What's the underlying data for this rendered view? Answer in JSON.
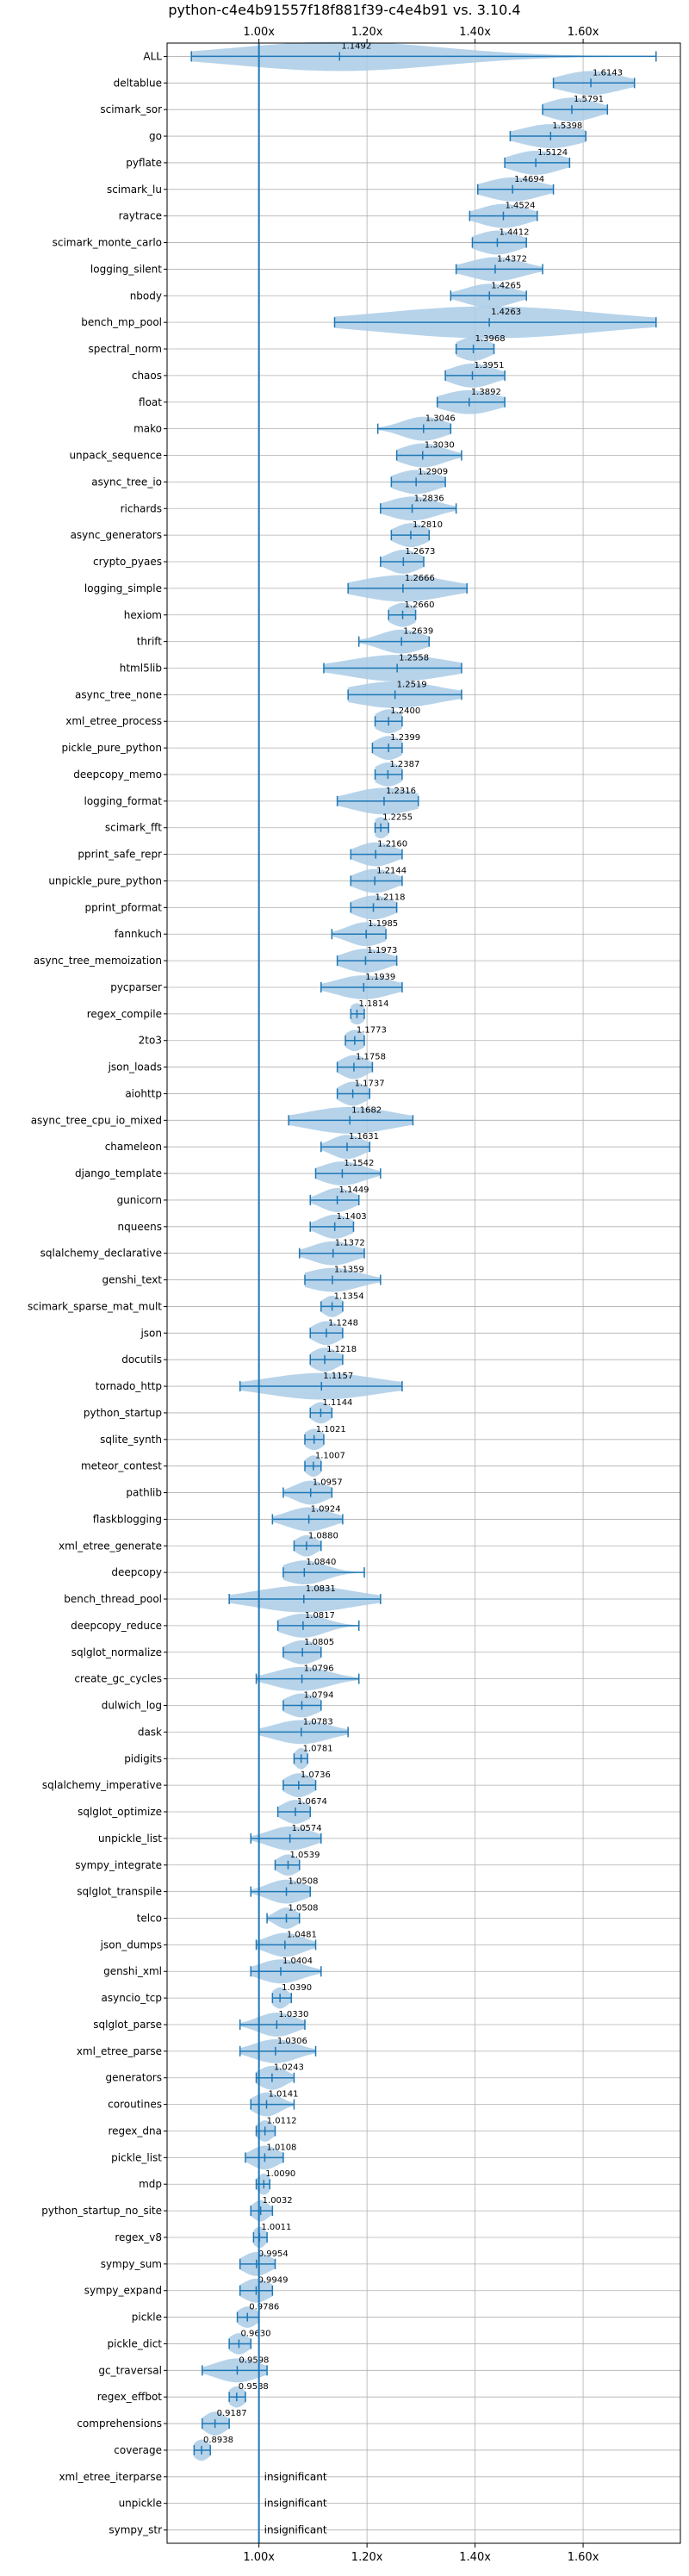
{
  "chart_data": {
    "type": "violin",
    "title": "python-c4e4b91557f18f881f39-c4e4b91 vs. 3.10.4",
    "x_axis": {
      "min": 0.83,
      "max": 1.78,
      "ticks": [
        1.0,
        1.2,
        1.4,
        1.6
      ],
      "tick_labels": [
        "1.00x",
        "1.20x",
        "1.40x",
        "1.60x"
      ],
      "reference_line": 1.0,
      "positions": [
        "top",
        "bottom"
      ]
    },
    "colors": {
      "violin": "#a9cbe6",
      "line": "#1f77b4",
      "grid": "#b0b0b0"
    },
    "insignificant_label": "insignificant",
    "benchmarks": [
      {
        "name": "ALL",
        "label": "1.1492",
        "mean": 1.1492,
        "lo": 0.875,
        "hi": 1.735,
        "spread": 0.19,
        "height": 0.55
      },
      {
        "name": "deltablue",
        "label": "1.6143",
        "mean": 1.6143,
        "lo": 1.545,
        "hi": 1.695,
        "spread": 0.055,
        "height": 0.45
      },
      {
        "name": "scimark_sor",
        "label": "1.5791",
        "mean": 1.5791,
        "lo": 1.525,
        "hi": 1.645,
        "spread": 0.045,
        "height": 0.45
      },
      {
        "name": "go",
        "label": "1.5398",
        "mean": 1.5398,
        "lo": 1.465,
        "hi": 1.605,
        "spread": 0.055,
        "height": 0.45
      },
      {
        "name": "pyflate",
        "label": "1.5124",
        "mean": 1.5124,
        "lo": 1.455,
        "hi": 1.575,
        "spread": 0.045,
        "height": 0.45
      },
      {
        "name": "scimark_lu",
        "label": "1.4694",
        "mean": 1.4694,
        "lo": 1.405,
        "hi": 1.545,
        "spread": 0.05,
        "height": 0.45
      },
      {
        "name": "raytrace",
        "label": "1.4524",
        "mean": 1.4524,
        "lo": 1.39,
        "hi": 1.515,
        "spread": 0.045,
        "height": 0.45
      },
      {
        "name": "scimark_monte_carlo",
        "label": "1.4412",
        "mean": 1.4412,
        "lo": 1.395,
        "hi": 1.495,
        "spread": 0.04,
        "height": 0.45
      },
      {
        "name": "logging_silent",
        "label": "1.4372",
        "mean": 1.4372,
        "lo": 1.365,
        "hi": 1.525,
        "spread": 0.05,
        "height": 0.45
      },
      {
        "name": "nbody",
        "label": "1.4265",
        "mean": 1.4265,
        "lo": 1.355,
        "hi": 1.495,
        "spread": 0.045,
        "height": 0.45
      },
      {
        "name": "bench_mp_pool",
        "label": "1.4263",
        "mean": 1.4263,
        "lo": 1.14,
        "hi": 1.735,
        "spread": 0.2,
        "height": 0.6
      },
      {
        "name": "spectral_norm",
        "label": "1.3968",
        "mean": 1.3968,
        "lo": 1.365,
        "hi": 1.435,
        "spread": 0.03,
        "height": 0.45
      },
      {
        "name": "chaos",
        "label": "1.3951",
        "mean": 1.3951,
        "lo": 1.345,
        "hi": 1.455,
        "spread": 0.04,
        "height": 0.45
      },
      {
        "name": "float",
        "label": "1.3892",
        "mean": 1.3892,
        "lo": 1.33,
        "hi": 1.455,
        "spread": 0.05,
        "height": 0.45
      },
      {
        "name": "mako",
        "label": "1.3046",
        "mean": 1.3046,
        "lo": 1.22,
        "hi": 1.355,
        "spread": 0.04,
        "height": 0.45
      },
      {
        "name": "unpack_sequence",
        "label": "1.3030",
        "mean": 1.303,
        "lo": 1.255,
        "hi": 1.375,
        "spread": 0.04,
        "height": 0.45
      },
      {
        "name": "async_tree_io",
        "label": "1.2909",
        "mean": 1.2909,
        "lo": 1.245,
        "hi": 1.345,
        "spread": 0.04,
        "height": 0.45
      },
      {
        "name": "richards",
        "label": "1.2836",
        "mean": 1.2836,
        "lo": 1.225,
        "hi": 1.365,
        "spread": 0.045,
        "height": 0.45
      },
      {
        "name": "async_generators",
        "label": "1.2810",
        "mean": 1.281,
        "lo": 1.245,
        "hi": 1.315,
        "spread": 0.03,
        "height": 0.45
      },
      {
        "name": "crypto_pyaes",
        "label": "1.2673",
        "mean": 1.2673,
        "lo": 1.225,
        "hi": 1.305,
        "spread": 0.03,
        "height": 0.45
      },
      {
        "name": "logging_simple",
        "label": "1.2666",
        "mean": 1.2666,
        "lo": 1.165,
        "hi": 1.385,
        "spread": 0.08,
        "height": 0.5
      },
      {
        "name": "hexiom",
        "label": "1.2660",
        "mean": 1.266,
        "lo": 1.24,
        "hi": 1.29,
        "spread": 0.025,
        "height": 0.45
      },
      {
        "name": "thrift",
        "label": "1.2639",
        "mean": 1.2639,
        "lo": 1.185,
        "hi": 1.315,
        "spread": 0.04,
        "height": 0.45
      },
      {
        "name": "html5lib",
        "label": "1.2558",
        "mean": 1.2558,
        "lo": 1.12,
        "hi": 1.375,
        "spread": 0.09,
        "height": 0.5
      },
      {
        "name": "async_tree_none",
        "label": "1.2519",
        "mean": 1.2519,
        "lo": 1.165,
        "hi": 1.375,
        "spread": 0.08,
        "height": 0.5
      },
      {
        "name": "xml_etree_process",
        "label": "1.2400",
        "mean": 1.24,
        "lo": 1.215,
        "hi": 1.265,
        "spread": 0.025,
        "height": 0.45
      },
      {
        "name": "pickle_pure_python",
        "label": "1.2399",
        "mean": 1.2399,
        "lo": 1.21,
        "hi": 1.265,
        "spread": 0.025,
        "height": 0.45
      },
      {
        "name": "deepcopy_memo",
        "label": "1.2387",
        "mean": 1.2387,
        "lo": 1.215,
        "hi": 1.265,
        "spread": 0.025,
        "height": 0.45
      },
      {
        "name": "logging_format",
        "label": "1.2316",
        "mean": 1.2316,
        "lo": 1.145,
        "hi": 1.295,
        "spread": 0.06,
        "height": 0.5
      },
      {
        "name": "scimark_fft",
        "label": "1.2255",
        "mean": 1.2255,
        "lo": 1.215,
        "hi": 1.24,
        "spread": 0.015,
        "height": 0.4
      },
      {
        "name": "pprint_safe_repr",
        "label": "1.2160",
        "mean": 1.216,
        "lo": 1.17,
        "hi": 1.265,
        "spread": 0.035,
        "height": 0.45
      },
      {
        "name": "unpickle_pure_python",
        "label": "1.2144",
        "mean": 1.2144,
        "lo": 1.17,
        "hi": 1.265,
        "spread": 0.035,
        "height": 0.45
      },
      {
        "name": "pprint_pformat",
        "label": "1.2118",
        "mean": 1.2118,
        "lo": 1.17,
        "hi": 1.255,
        "spread": 0.035,
        "height": 0.45
      },
      {
        "name": "fannkuch",
        "label": "1.1985",
        "mean": 1.1985,
        "lo": 1.135,
        "hi": 1.235,
        "spread": 0.035,
        "height": 0.45
      },
      {
        "name": "async_tree_memoization",
        "label": "1.1973",
        "mean": 1.1973,
        "lo": 1.145,
        "hi": 1.255,
        "spread": 0.04,
        "height": 0.45
      },
      {
        "name": "pycparser",
        "label": "1.1939",
        "mean": 1.1939,
        "lo": 1.115,
        "hi": 1.265,
        "spread": 0.05,
        "height": 0.45
      },
      {
        "name": "regex_compile",
        "label": "1.1814",
        "mean": 1.1814,
        "lo": 1.17,
        "hi": 1.195,
        "spread": 0.015,
        "height": 0.4
      },
      {
        "name": "2to3",
        "label": "1.1773",
        "mean": 1.1773,
        "lo": 1.16,
        "hi": 1.195,
        "spread": 0.018,
        "height": 0.4
      },
      {
        "name": "json_loads",
        "label": "1.1758",
        "mean": 1.1758,
        "lo": 1.145,
        "hi": 1.21,
        "spread": 0.025,
        "height": 0.45
      },
      {
        "name": "aiohttp",
        "label": "1.1737",
        "mean": 1.1737,
        "lo": 1.145,
        "hi": 1.205,
        "spread": 0.025,
        "height": 0.45
      },
      {
        "name": "async_tree_cpu_io_mixed",
        "label": "1.1682",
        "mean": 1.1682,
        "lo": 1.055,
        "hi": 1.285,
        "spread": 0.08,
        "height": 0.5
      },
      {
        "name": "chameleon",
        "label": "1.1631",
        "mean": 1.1631,
        "lo": 1.115,
        "hi": 1.205,
        "spread": 0.03,
        "height": 0.45
      },
      {
        "name": "django_template",
        "label": "1.1542",
        "mean": 1.1542,
        "lo": 1.105,
        "hi": 1.225,
        "spread": 0.04,
        "height": 0.45
      },
      {
        "name": "gunicorn",
        "label": "1.1449",
        "mean": 1.1449,
        "lo": 1.095,
        "hi": 1.185,
        "spread": 0.03,
        "height": 0.45
      },
      {
        "name": "nqueens",
        "label": "1.1403",
        "mean": 1.1403,
        "lo": 1.095,
        "hi": 1.175,
        "spread": 0.03,
        "height": 0.45
      },
      {
        "name": "sqlalchemy_declarative",
        "label": "1.1372",
        "mean": 1.1372,
        "lo": 1.075,
        "hi": 1.195,
        "spread": 0.04,
        "height": 0.45
      },
      {
        "name": "genshi_text",
        "label": "1.1359",
        "mean": 1.1359,
        "lo": 1.085,
        "hi": 1.225,
        "spread": 0.05,
        "height": 0.45
      },
      {
        "name": "scimark_sparse_mat_mult",
        "label": "1.1354",
        "mean": 1.1354,
        "lo": 1.115,
        "hi": 1.155,
        "spread": 0.018,
        "height": 0.4
      },
      {
        "name": "json",
        "label": "1.1248",
        "mean": 1.1248,
        "lo": 1.095,
        "hi": 1.155,
        "spread": 0.025,
        "height": 0.45
      },
      {
        "name": "docutils",
        "label": "1.1218",
        "mean": 1.1218,
        "lo": 1.095,
        "hi": 1.155,
        "spread": 0.025,
        "height": 0.45
      },
      {
        "name": "tornado_http",
        "label": "1.1157",
        "mean": 1.1157,
        "lo": 0.965,
        "hi": 1.265,
        "spread": 0.1,
        "height": 0.5
      },
      {
        "name": "python_startup",
        "label": "1.1144",
        "mean": 1.1144,
        "lo": 1.095,
        "hi": 1.135,
        "spread": 0.018,
        "height": 0.4
      },
      {
        "name": "sqlite_synth",
        "label": "1.1021",
        "mean": 1.1021,
        "lo": 1.085,
        "hi": 1.12,
        "spread": 0.018,
        "height": 0.4
      },
      {
        "name": "meteor_contest",
        "label": "1.1007",
        "mean": 1.1007,
        "lo": 1.085,
        "hi": 1.115,
        "spread": 0.015,
        "height": 0.4
      },
      {
        "name": "pathlib",
        "label": "1.0957",
        "mean": 1.0957,
        "lo": 1.045,
        "hi": 1.135,
        "spread": 0.03,
        "height": 0.45
      },
      {
        "name": "flaskblogging",
        "label": "1.0924",
        "mean": 1.0924,
        "lo": 1.025,
        "hi": 1.155,
        "spread": 0.04,
        "height": 0.45
      },
      {
        "name": "xml_etree_generate",
        "label": "1.0880",
        "mean": 1.088,
        "lo": 1.065,
        "hi": 1.115,
        "spread": 0.02,
        "height": 0.4
      },
      {
        "name": "deepcopy",
        "label": "1.0840",
        "mean": 1.084,
        "lo": 1.045,
        "hi": 1.195,
        "spread": 0.04,
        "height": 0.45
      },
      {
        "name": "bench_thread_pool",
        "label": "1.0831",
        "mean": 1.0831,
        "lo": 0.945,
        "hi": 1.225,
        "spread": 0.09,
        "height": 0.5
      },
      {
        "name": "deepcopy_reduce",
        "label": "1.0817",
        "mean": 1.0817,
        "lo": 1.035,
        "hi": 1.185,
        "spread": 0.04,
        "height": 0.45
      },
      {
        "name": "sqlglot_normalize",
        "label": "1.0805",
        "mean": 1.0805,
        "lo": 1.045,
        "hi": 1.115,
        "spread": 0.03,
        "height": 0.45
      },
      {
        "name": "create_gc_cycles",
        "label": "1.0796",
        "mean": 1.0796,
        "lo": 0.995,
        "hi": 1.185,
        "spread": 0.05,
        "height": 0.45
      },
      {
        "name": "dulwich_log",
        "label": "1.0794",
        "mean": 1.0794,
        "lo": 1.045,
        "hi": 1.115,
        "spread": 0.03,
        "height": 0.45
      },
      {
        "name": "dask",
        "label": "1.0783",
        "mean": 1.0783,
        "lo": 1.0,
        "hi": 1.165,
        "spread": 0.05,
        "height": 0.45
      },
      {
        "name": "pidigits",
        "label": "1.0781",
        "mean": 1.0781,
        "lo": 1.065,
        "hi": 1.09,
        "spread": 0.012,
        "height": 0.4
      },
      {
        "name": "sqlalchemy_imperative",
        "label": "1.0736",
        "mean": 1.0736,
        "lo": 1.045,
        "hi": 1.105,
        "spread": 0.025,
        "height": 0.45
      },
      {
        "name": "sqlglot_optimize",
        "label": "1.0674",
        "mean": 1.0674,
        "lo": 1.035,
        "hi": 1.095,
        "spread": 0.025,
        "height": 0.45
      },
      {
        "name": "unpickle_list",
        "label": "1.0574",
        "mean": 1.0574,
        "lo": 0.985,
        "hi": 1.115,
        "spread": 0.04,
        "height": 0.45
      },
      {
        "name": "sympy_integrate",
        "label": "1.0539",
        "mean": 1.0539,
        "lo": 1.03,
        "hi": 1.075,
        "spread": 0.02,
        "height": 0.4
      },
      {
        "name": "sqlglot_transpile",
        "label": "1.0508",
        "mean": 1.0508,
        "lo": 0.985,
        "hi": 1.095,
        "spread": 0.035,
        "height": 0.45
      },
      {
        "name": "telco",
        "label": "1.0508",
        "mean": 1.0508,
        "lo": 1.015,
        "hi": 1.075,
        "spread": 0.02,
        "height": 0.4
      },
      {
        "name": "json_dumps",
        "label": "1.0481",
        "mean": 1.0481,
        "lo": 0.995,
        "hi": 1.105,
        "spread": 0.035,
        "height": 0.45
      },
      {
        "name": "genshi_xml",
        "label": "1.0404",
        "mean": 1.0404,
        "lo": 0.985,
        "hi": 1.115,
        "spread": 0.04,
        "height": 0.45
      },
      {
        "name": "asyncio_tcp",
        "label": "1.0390",
        "mean": 1.039,
        "lo": 1.025,
        "hi": 1.06,
        "spread": 0.015,
        "height": 0.4
      },
      {
        "name": "sqlglot_parse",
        "label": "1.0330",
        "mean": 1.033,
        "lo": 0.965,
        "hi": 1.085,
        "spread": 0.035,
        "height": 0.45
      },
      {
        "name": "xml_etree_parse",
        "label": "1.0306",
        "mean": 1.0306,
        "lo": 0.965,
        "hi": 1.105,
        "spread": 0.04,
        "height": 0.45
      },
      {
        "name": "generators",
        "label": "1.0243",
        "mean": 1.0243,
        "lo": 0.995,
        "hi": 1.065,
        "spread": 0.025,
        "height": 0.45
      },
      {
        "name": "coroutines",
        "label": "1.0141",
        "mean": 1.0141,
        "lo": 0.985,
        "hi": 1.065,
        "spread": 0.025,
        "height": 0.45
      },
      {
        "name": "regex_dna",
        "label": "1.0112",
        "mean": 1.0112,
        "lo": 0.995,
        "hi": 1.03,
        "spread": 0.015,
        "height": 0.4
      },
      {
        "name": "pickle_list",
        "label": "1.0108",
        "mean": 1.0108,
        "lo": 0.975,
        "hi": 1.045,
        "spread": 0.025,
        "height": 0.45
      },
      {
        "name": "mdp",
        "label": "1.0090",
        "mean": 1.009,
        "lo": 0.995,
        "hi": 1.02,
        "spread": 0.012,
        "height": 0.4
      },
      {
        "name": "python_startup_no_site",
        "label": "1.0032",
        "mean": 1.0032,
        "lo": 0.985,
        "hi": 1.025,
        "spread": 0.015,
        "height": 0.4
      },
      {
        "name": "regex_v8",
        "label": "1.0011",
        "mean": 1.0011,
        "lo": 0.99,
        "hi": 1.015,
        "spread": 0.012,
        "height": 0.4
      },
      {
        "name": "sympy_sum",
        "label": "0.9954",
        "mean": 0.9954,
        "lo": 0.965,
        "hi": 1.03,
        "spread": 0.025,
        "height": 0.45
      },
      {
        "name": "sympy_expand",
        "label": "0.9949",
        "mean": 0.9949,
        "lo": 0.965,
        "hi": 1.025,
        "spread": 0.025,
        "height": 0.45
      },
      {
        "name": "pickle",
        "label": "0.9786",
        "mean": 0.9786,
        "lo": 0.96,
        "hi": 1.0,
        "spread": 0.018,
        "height": 0.4
      },
      {
        "name": "pickle_dict",
        "label": "0.9630",
        "mean": 0.963,
        "lo": 0.945,
        "hi": 0.985,
        "spread": 0.018,
        "height": 0.4
      },
      {
        "name": "gc_traversal",
        "label": "0.9598",
        "mean": 0.9598,
        "lo": 0.895,
        "hi": 1.015,
        "spread": 0.04,
        "height": 0.45
      },
      {
        "name": "regex_effbot",
        "label": "0.9588",
        "mean": 0.9588,
        "lo": 0.945,
        "hi": 0.975,
        "spread": 0.015,
        "height": 0.4
      },
      {
        "name": "comprehensions",
        "label": "0.9187",
        "mean": 0.9187,
        "lo": 0.895,
        "hi": 0.945,
        "spread": 0.02,
        "height": 0.45
      },
      {
        "name": "coverage",
        "label": "0.8938",
        "mean": 0.8938,
        "lo": 0.88,
        "hi": 0.91,
        "spread": 0.015,
        "height": 0.4
      },
      {
        "name": "xml_etree_iterparse",
        "label": "",
        "insignificant": true
      },
      {
        "name": "unpickle",
        "label": "",
        "insignificant": true
      },
      {
        "name": "sympy_str",
        "label": "",
        "insignificant": true
      }
    ]
  }
}
